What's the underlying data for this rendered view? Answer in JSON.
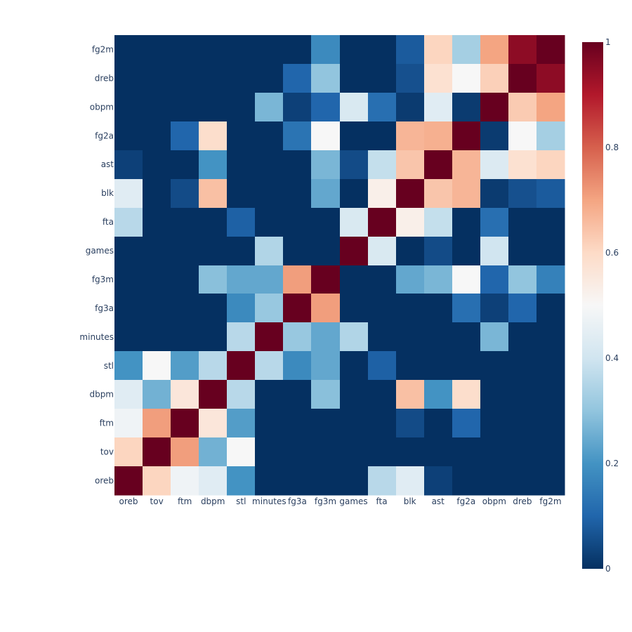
{
  "chart_data": {
    "type": "heatmap",
    "title": "",
    "xlabel": "",
    "ylabel": "",
    "x_categories": [
      "oreb",
      "tov",
      "ftm",
      "dbpm",
      "stl",
      "minutes",
      "fg3a",
      "fg3m",
      "games",
      "fta",
      "blk",
      "ast",
      "fg2a",
      "obpm",
      "dreb",
      "fg2m"
    ],
    "y_categories_top_to_bottom": [
      "fg2m",
      "dreb",
      "obpm",
      "fg2a",
      "ast",
      "blk",
      "fta",
      "games",
      "fg3m",
      "fg3a",
      "minutes",
      "stl",
      "dbpm",
      "ftm",
      "tov",
      "oreb"
    ],
    "z_range": [
      0,
      1
    ],
    "colorscale": [
      [
        0.0,
        "#053061"
      ],
      [
        0.1,
        "#2166ac"
      ],
      [
        0.2,
        "#4393c3"
      ],
      [
        0.3,
        "#92c5de"
      ],
      [
        0.4,
        "#d1e5f0"
      ],
      [
        0.5,
        "#f7f7f7"
      ],
      [
        0.6,
        "#fddbc7"
      ],
      [
        0.7,
        "#f4a582"
      ],
      [
        0.8,
        "#d6604d"
      ],
      [
        0.9,
        "#b2182b"
      ],
      [
        1.0,
        "#67001f"
      ]
    ],
    "colorbar_ticks": [
      "0",
      "0.2",
      "0.4",
      "0.6",
      "0.8",
      "1"
    ],
    "values_top_to_bottom": [
      [
        0.0,
        0.0,
        0.0,
        0.0,
        0.0,
        0.0,
        0.0,
        0.18,
        0.0,
        0.0,
        0.08,
        0.61,
        0.33,
        0.7,
        0.95,
        1.0
      ],
      [
        0.0,
        0.0,
        0.0,
        0.0,
        0.0,
        0.0,
        0.1,
        0.3,
        0.0,
        0.0,
        0.06,
        0.58,
        0.5,
        0.62,
        1.0,
        0.95
      ],
      [
        0.0,
        0.0,
        0.0,
        0.0,
        0.0,
        0.27,
        0.03,
        0.1,
        0.42,
        0.12,
        0.02,
        0.44,
        0.02,
        1.0,
        0.63,
        0.7
      ],
      [
        0.0,
        0.0,
        0.1,
        0.59,
        0.0,
        0.0,
        0.13,
        0.5,
        0.0,
        0.0,
        0.67,
        0.68,
        1.0,
        0.02,
        0.5,
        0.33
      ],
      [
        0.03,
        0.0,
        0.0,
        0.2,
        0.0,
        0.0,
        0.0,
        0.27,
        0.05,
        0.38,
        0.64,
        1.0,
        0.67,
        0.43,
        0.58,
        0.61
      ],
      [
        0.44,
        0.0,
        0.05,
        0.65,
        0.0,
        0.0,
        0.0,
        0.24,
        0.0,
        0.53,
        1.0,
        0.64,
        0.67,
        0.02,
        0.06,
        0.08
      ],
      [
        0.36,
        0.0,
        0.0,
        0.0,
        0.09,
        0.0,
        0.0,
        0.0,
        0.42,
        1.0,
        0.53,
        0.38,
        0.0,
        0.12,
        0.0,
        0.0
      ],
      [
        0.0,
        0.0,
        0.0,
        0.0,
        0.0,
        0.35,
        0.0,
        0.0,
        1.0,
        0.42,
        0.0,
        0.05,
        0.0,
        0.4,
        0.0,
        0.0
      ],
      [
        0.0,
        0.0,
        0.0,
        0.29,
        0.24,
        0.24,
        0.71,
        1.0,
        0.0,
        0.0,
        0.24,
        0.27,
        0.5,
        0.1,
        0.3,
        0.16
      ],
      [
        0.0,
        0.0,
        0.0,
        0.0,
        0.18,
        0.31,
        1.0,
        0.71,
        0.0,
        0.0,
        0.0,
        0.0,
        0.12,
        0.03,
        0.1,
        0.0
      ],
      [
        0.0,
        0.0,
        0.0,
        0.0,
        0.36,
        1.0,
        0.31,
        0.24,
        0.35,
        0.0,
        0.0,
        0.0,
        0.0,
        0.27,
        0.0,
        0.0
      ],
      [
        0.2,
        0.5,
        0.22,
        0.36,
        1.0,
        0.36,
        0.18,
        0.24,
        0.0,
        0.09,
        0.0,
        0.0,
        0.0,
        0.0,
        0.0,
        0.0
      ],
      [
        0.44,
        0.26,
        0.56,
        1.0,
        0.36,
        0.0,
        0.0,
        0.29,
        0.0,
        0.0,
        0.65,
        0.2,
        0.59,
        0.0,
        0.0,
        0.0
      ],
      [
        0.48,
        0.71,
        1.0,
        0.56,
        0.22,
        0.0,
        0.0,
        0.0,
        0.0,
        0.0,
        0.05,
        0.0,
        0.1,
        0.0,
        0.0,
        0.0
      ],
      [
        0.61,
        1.0,
        0.71,
        0.26,
        0.5,
        0.0,
        0.0,
        0.0,
        0.0,
        0.0,
        0.0,
        0.0,
        0.0,
        0.0,
        0.0,
        0.0
      ],
      [
        1.0,
        0.61,
        0.48,
        0.44,
        0.2,
        0.0,
        0.0,
        0.0,
        0.0,
        0.36,
        0.44,
        0.03,
        0.0,
        0.0,
        0.0,
        0.0
      ]
    ]
  }
}
